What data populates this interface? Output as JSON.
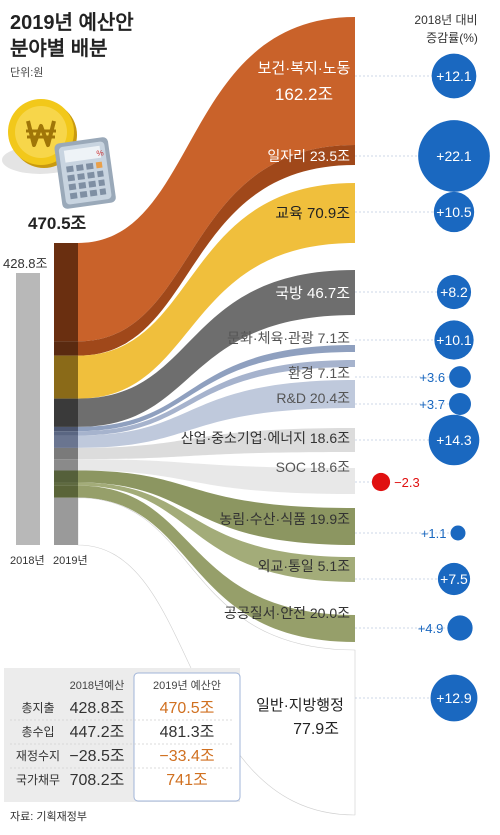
{
  "header": {
    "title_line1": "2019년 예산안",
    "title_line2": "분야별 배분",
    "unit": "단위:원",
    "change_header_line1": "2018년 대비",
    "change_header_line2": "증감률(%)"
  },
  "totals": {
    "total_2018": "428.8조",
    "total_2019": "470.5조",
    "label_2018": "2018년",
    "label_2019": "2019년"
  },
  "icons": [
    "won-coin-icon",
    "calculator-icon"
  ],
  "chart_data": {
    "type": "sankey",
    "categories": [
      "보건·복지·노동",
      "일자리",
      "교육",
      "국방",
      "문화·체육·관광",
      "환경",
      "R&D",
      "산업·중소기업·에너지",
      "SOC",
      "농림·수산·식품",
      "외교·통일",
      "공공질서·안전",
      "일반·지방행정"
    ],
    "budget_2019": [
      162.2,
      23.5,
      70.9,
      46.7,
      7.1,
      7.1,
      20.4,
      18.6,
      18.6,
      19.9,
      5.1,
      20.0,
      77.9
    ],
    "change_pct": [
      12.1,
      22.1,
      10.5,
      8.2,
      10.1,
      3.6,
      3.7,
      14.3,
      -2.3,
      1.1,
      7.5,
      4.9,
      12.9
    ],
    "total_2018": 428.8,
    "total_2019": 470.5
  },
  "sectors": [
    {
      "name": "보건·복지·노동",
      "value": "162.2조",
      "change": "+12.1",
      "color": "#c9622a"
    },
    {
      "name": "일자리",
      "value": "23.5조",
      "change": "+22.1",
      "color": "#a0481a"
    },
    {
      "name": "교육",
      "value": "70.9조",
      "change": "+10.5",
      "color": "#f0bf3c"
    },
    {
      "name": "국방",
      "value": "46.7조",
      "change": "+8.2",
      "color": "#6e6e6e"
    },
    {
      "name": "문화·체육·관광",
      "value": "7.1조",
      "change": "+10.1",
      "color": "#8fa0bf"
    },
    {
      "name": "환경",
      "value": "7.1조",
      "change": "+3.6",
      "color": "#a6b3cd"
    },
    {
      "name": "R&D",
      "value": "20.4조",
      "change": "+3.7",
      "color": "#bfc9dc"
    },
    {
      "name": "산업·중소기업·에너지",
      "value": "18.6조",
      "change": "+14.3",
      "color": "#dcdcdc"
    },
    {
      "name": "SOC",
      "value": "18.6조",
      "change": "−2.3",
      "color": "#e8e8e8"
    },
    {
      "name": "농림·수산·식품",
      "value": "19.9조",
      "change": "+1.1",
      "color": "#8c9661"
    },
    {
      "name": "외교·통일",
      "value": "5.1조",
      "change": "+7.5",
      "color": "#a3ac79"
    },
    {
      "name": "공공질서·안전",
      "value": "20.0조",
      "change": "+4.9",
      "color": "#969f6a"
    },
    {
      "name": "일반·지방행정",
      "value": "77.9조",
      "change": "+12.9",
      "color": "#ffffff"
    }
  ],
  "table": {
    "col_2018": "2018년예산",
    "col_2019": "2019년 예산안",
    "rows": [
      {
        "label": "총지출",
        "v2018": "428.8조",
        "v2019": "470.5조"
      },
      {
        "label": "총수입",
        "v2018": "447.2조",
        "v2019": "481.3조"
      },
      {
        "label": "재정수지",
        "v2018": "−28.5조",
        "v2019": "−33.4조"
      },
      {
        "label": "국가채무",
        "v2018": "708.2조",
        "v2019": "741조"
      }
    ]
  },
  "source": "자료: 기획재정부",
  "colors": {
    "positive": "#1a68c0",
    "negative": "#e01010",
    "highlight": "#d07020"
  }
}
